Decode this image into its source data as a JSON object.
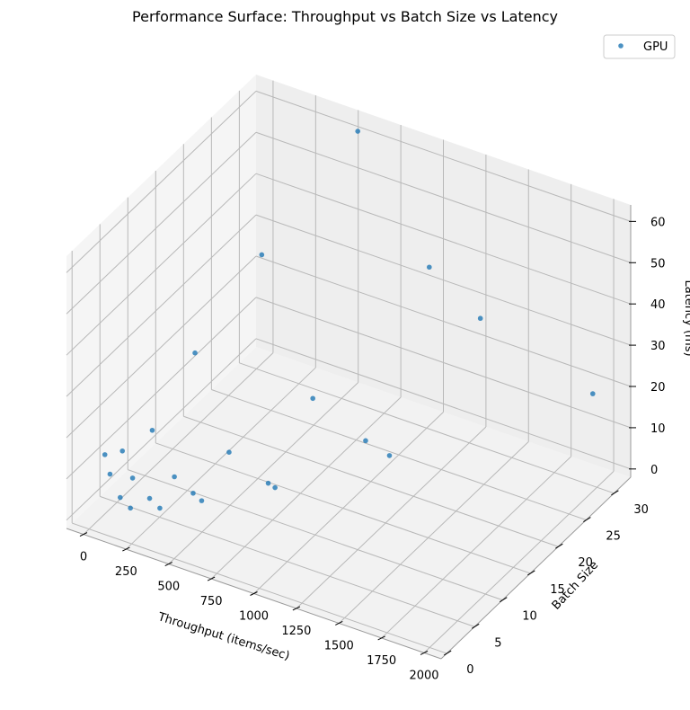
{
  "chart_data": {
    "type": "scatter3d",
    "title": "Performance Surface: Throughput vs Batch Size vs Latency",
    "xlabel": "Throughput (items/sec)",
    "ylabel": "Batch Size",
    "zlabel": "Latency (ms)",
    "xlim": [
      -100,
      2100
    ],
    "ylim": [
      -1,
      33
    ],
    "zlim": [
      -2,
      64
    ],
    "xticks": [
      "0",
      "250",
      "500",
      "750",
      "1000",
      "1250",
      "1500",
      "1750",
      "2000"
    ],
    "yticks": [
      "0",
      "5",
      "10",
      "15",
      "20",
      "25",
      "30"
    ],
    "zticks": [
      "0",
      "10",
      "20",
      "30",
      "40",
      "50",
      "60"
    ],
    "legend_position": "top-right",
    "grid": true,
    "series": [
      {
        "name": "GPU",
        "color": "#1f77b4",
        "points": [
          {
            "x": 210,
            "y": 1,
            "z": 4.8
          },
          {
            "x": 350,
            "y": 2,
            "z": 5.5
          },
          {
            "x": 530,
            "y": 4,
            "z": 7.3
          },
          {
            "x": 790,
            "y": 8,
            "z": 10.1
          },
          {
            "x": 1240,
            "y": 16,
            "z": 12.9
          },
          {
            "x": 1910,
            "y": 32,
            "z": 16.8
          },
          {
            "x": 150,
            "y": 1,
            "z": 6.5
          },
          {
            "x": 290,
            "y": 2,
            "z": 7.0
          },
          {
            "x": 480,
            "y": 4,
            "z": 8.4
          },
          {
            "x": 830,
            "y": 8,
            "z": 9.6
          },
          {
            "x": 1100,
            "y": 16,
            "z": 14.5
          },
          {
            "x": 1250,
            "y": 32,
            "z": 25.6
          },
          {
            "x": 90,
            "y": 1,
            "z": 11.3
          },
          {
            "x": 190,
            "y": 2,
            "z": 10.5
          },
          {
            "x": 370,
            "y": 4,
            "z": 10.8
          },
          {
            "x": 560,
            "y": 8,
            "z": 14.3
          },
          {
            "x": 790,
            "y": 16,
            "z": 20.3
          },
          {
            "x": 950,
            "y": 32,
            "z": 33.7
          },
          {
            "x": 60,
            "y": 1,
            "z": 15.6
          },
          {
            "x": 130,
            "y": 2,
            "z": 16.2
          },
          {
            "x": 240,
            "y": 4,
            "z": 20.2
          },
          {
            "x": 360,
            "y": 8,
            "z": 35.5
          },
          {
            "x": 490,
            "y": 16,
            "z": 50.8
          },
          {
            "x": 530,
            "y": 32,
            "z": 60.6
          }
        ]
      }
    ]
  }
}
